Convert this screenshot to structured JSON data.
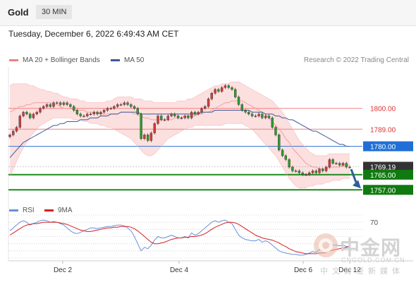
{
  "header": {
    "asset": "Gold",
    "timeframe": "30 MIN"
  },
  "datetime": "Tuesday, December 6, 2022 6:49:43 AM CET",
  "legend": {
    "bb_label": "MA 20 + Bollinger Bands",
    "ma50_label": "MA 50",
    "credit": "Research © 2022 Trading Central"
  },
  "rsi_legend": {
    "rsi": "RSI",
    "ma": "9MA"
  },
  "colors": {
    "bollinger": "#f08080",
    "ma50": "#3b5998",
    "rsi": "#6a8fdc",
    "rsi_ma": "#d42020",
    "pivot": "#3a7bd5",
    "support": "#1a8a1a",
    "arrow": "#2f5f9a"
  },
  "chart_data": {
    "type": "candlestick",
    "x_ticks": [
      "Dec 2",
      "Dec 4",
      "Dec 6",
      "Dec 12"
    ],
    "ylim": [
      1753,
      1820
    ],
    "levels": [
      {
        "value": 1800.0,
        "label": "1800.00",
        "kind": "resistance"
      },
      {
        "value": 1789.0,
        "label": "1789.00",
        "kind": "resistance"
      },
      {
        "value": 1780.0,
        "label": "1780.00",
        "kind": "pivot"
      },
      {
        "value": 1769.19,
        "label": "1769.19",
        "kind": "last_price"
      },
      {
        "value": 1765.0,
        "label": "1765.00",
        "kind": "support"
      },
      {
        "value": 1757.0,
        "label": "1757.00",
        "kind": "support"
      }
    ],
    "close": [
      1786,
      1788,
      1790,
      1796,
      1798,
      1797,
      1795,
      1797,
      1798,
      1800,
      1801,
      1802,
      1801,
      1803,
      1803,
      1802,
      1803,
      1802,
      1801,
      1799,
      1797,
      1796,
      1796,
      1797,
      1797,
      1798,
      1797,
      1798,
      1799,
      1800,
      1800,
      1801,
      1802,
      1802,
      1803,
      1802,
      1801,
      1800,
      1797,
      1784,
      1786,
      1783,
      1787,
      1792,
      1796,
      1794,
      1794,
      1796,
      1797,
      1796,
      1795,
      1795,
      1796,
      1795,
      1798,
      1797,
      1798,
      1800,
      1801,
      1805,
      1808,
      1810,
      1809,
      1811,
      1812,
      1811,
      1810,
      1806,
      1802,
      1799,
      1798,
      1797,
      1796,
      1796,
      1797,
      1795,
      1796,
      1795,
      1790,
      1786,
      1778,
      1775,
      1773,
      1769,
      1767,
      1767,
      1766,
      1765,
      1765,
      1766,
      1767,
      1766,
      1768,
      1767,
      1769,
      1773,
      1771,
      1771,
      1770,
      1771,
      1769,
      1769
    ],
    "ma20": [
      1798,
      1799,
      1800,
      1801,
      1801,
      1802,
      1802,
      1803,
      1803,
      1803,
      1803,
      1803,
      1803,
      1802,
      1802,
      1801,
      1800,
      1800,
      1800,
      1799,
      1799,
      1799,
      1799,
      1798,
      1798,
      1798,
      1798,
      1797,
      1797,
      1797,
      1797,
      1797,
      1797,
      1798,
      1798,
      1798,
      1798,
      1797,
      1797,
      1796,
      1795,
      1795,
      1794,
      1794,
      1794,
      1794,
      1794,
      1794,
      1794,
      1795,
      1795,
      1795,
      1796,
      1796,
      1796,
      1796,
      1797,
      1797,
      1798,
      1798,
      1799,
      1800,
      1801,
      1802,
      1803,
      1803,
      1804,
      1804,
      1804,
      1804,
      1803,
      1802,
      1801,
      1800,
      1799,
      1798,
      1797,
      1795,
      1793,
      1791,
      1789,
      1787,
      1784,
      1782,
      1779,
      1777,
      1775,
      1773,
      1771,
      1770,
      1769,
      1769,
      1768,
      1768,
      1768,
      1769,
      1769,
      1769,
      1769,
      1770,
      1770,
      1770
    ],
    "bb_upper": [
      1812,
      1813,
      1813,
      1813,
      1813,
      1813,
      1812,
      1812,
      1811,
      1810,
      1810,
      1809,
      1809,
      1808,
      1808,
      1807,
      1806,
      1806,
      1805,
      1805,
      1805,
      1804,
      1804,
      1803,
      1803,
      1803,
      1803,
      1803,
      1803,
      1804,
      1804,
      1805,
      1806,
      1806,
      1806,
      1806,
      1806,
      1805,
      1805,
      1805,
      1804,
      1804,
      1804,
      1803,
      1803,
      1803,
      1803,
      1803,
      1803,
      1803,
      1804,
      1804,
      1804,
      1805,
      1805,
      1806,
      1807,
      1808,
      1809,
      1810,
      1811,
      1812,
      1812,
      1813,
      1813,
      1813,
      1814,
      1814,
      1814,
      1813,
      1812,
      1811,
      1810,
      1809,
      1808,
      1807,
      1806,
      1805,
      1804,
      1802,
      1800,
      1798,
      1795,
      1792,
      1789,
      1786,
      1783,
      1781,
      1779,
      1777,
      1776,
      1775,
      1775,
      1775,
      1775,
      1776,
      1776,
      1776,
      1776,
      1776,
      1776,
      1776
    ],
    "bb_lower": [
      1764,
      1768,
      1772,
      1776,
      1779,
      1782,
      1785,
      1787,
      1789,
      1791,
      1792,
      1793,
      1794,
      1795,
      1795,
      1795,
      1795,
      1795,
      1795,
      1794,
      1794,
      1794,
      1793,
      1793,
      1792,
      1792,
      1792,
      1791,
      1791,
      1790,
      1790,
      1789,
      1788,
      1787,
      1786,
      1785,
      1784,
      1782,
      1780,
      1778,
      1776,
      1775,
      1775,
      1776,
      1778,
      1780,
      1782,
      1784,
      1785,
      1786,
      1787,
      1788,
      1789,
      1790,
      1790,
      1791,
      1791,
      1791,
      1791,
      1791,
      1791,
      1791,
      1791,
      1791,
      1792,
      1792,
      1792,
      1792,
      1792,
      1792,
      1791,
      1790,
      1789,
      1787,
      1785,
      1783,
      1781,
      1779,
      1777,
      1775,
      1772,
      1769,
      1766,
      1763,
      1761,
      1759,
      1758,
      1758,
      1758,
      1759,
      1759,
      1760,
      1760,
      1760,
      1761,
      1761,
      1762,
      1762,
      1762,
      1763,
      1763,
      1763
    ],
    "ma50": [
      1774,
      1776,
      1778,
      1780,
      1782,
      1783,
      1784,
      1785,
      1786,
      1787,
      1788,
      1789,
      1790,
      1791,
      1791,
      1792,
      1792,
      1793,
      1793,
      1793,
      1793,
      1794,
      1794,
      1794,
      1795,
      1795,
      1795,
      1796,
      1796,
      1796,
      1797,
      1797,
      1797,
      1798,
      1798,
      1798,
      1798,
      1798,
      1798,
      1797,
      1797,
      1797,
      1797,
      1797,
      1797,
      1797,
      1797,
      1797,
      1797,
      1797,
      1797,
      1797,
      1797,
      1797,
      1797,
      1797,
      1797,
      1798,
      1798,
      1798,
      1798,
      1799,
      1799,
      1799,
      1799,
      1799,
      1799,
      1799,
      1799,
      1799,
      1799,
      1799,
      1798,
      1798,
      1798,
      1798,
      1797,
      1797,
      1797,
      1796,
      1796,
      1795,
      1795,
      1794,
      1794,
      1793,
      1792,
      1791,
      1790,
      1789,
      1788,
      1788,
      1787,
      1786,
      1785,
      1784,
      1783,
      1782,
      1781,
      1781,
      1780,
      1780
    ],
    "rsi": {
      "ylim": [
        20,
        80
      ],
      "tick": "70",
      "rsi": [
        58,
        62,
        66,
        70,
        72,
        70,
        66,
        68,
        70,
        72,
        73,
        72,
        70,
        71,
        70,
        68,
        66,
        62,
        58,
        55,
        54,
        56,
        58,
        60,
        62,
        62,
        61,
        62,
        63,
        64,
        64,
        65,
        66,
        66,
        65,
        62,
        58,
        50,
        40,
        30,
        35,
        33,
        38,
        45,
        50,
        48,
        48,
        50,
        52,
        50,
        48,
        48,
        50,
        48,
        55,
        52,
        54,
        58,
        62,
        66,
        70,
        72,
        70,
        72,
        73,
        70,
        68,
        60,
        52,
        48,
        46,
        45,
        44,
        44,
        46,
        42,
        44,
        42,
        38,
        34,
        30,
        28,
        27,
        26,
        25,
        25,
        24,
        24,
        25,
        27,
        29,
        28,
        32,
        30,
        34,
        40,
        38,
        38,
        37,
        38,
        36,
        36
      ],
      "ma": [
        52,
        55,
        58,
        61,
        64,
        66,
        67,
        68,
        68,
        69,
        70,
        70,
        70,
        70,
        70,
        69,
        68,
        67,
        65,
        63,
        61,
        59,
        58,
        57,
        57,
        58,
        59,
        60,
        61,
        62,
        62,
        63,
        63,
        64,
        64,
        64,
        63,
        61,
        58,
        54,
        50,
        46,
        42,
        40,
        40,
        41,
        42,
        44,
        46,
        47,
        48,
        48,
        49,
        49,
        50,
        50,
        51,
        52,
        54,
        57,
        60,
        63,
        65,
        67,
        69,
        70,
        70,
        69,
        67,
        64,
        61,
        58,
        55,
        52,
        50,
        48,
        47,
        46,
        45,
        43,
        41,
        38,
        36,
        33,
        31,
        29,
        28,
        27,
        26,
        26,
        26,
        26,
        27,
        27,
        28,
        30,
        31,
        32,
        33,
        34,
        35,
        36
      ]
    }
  }
}
